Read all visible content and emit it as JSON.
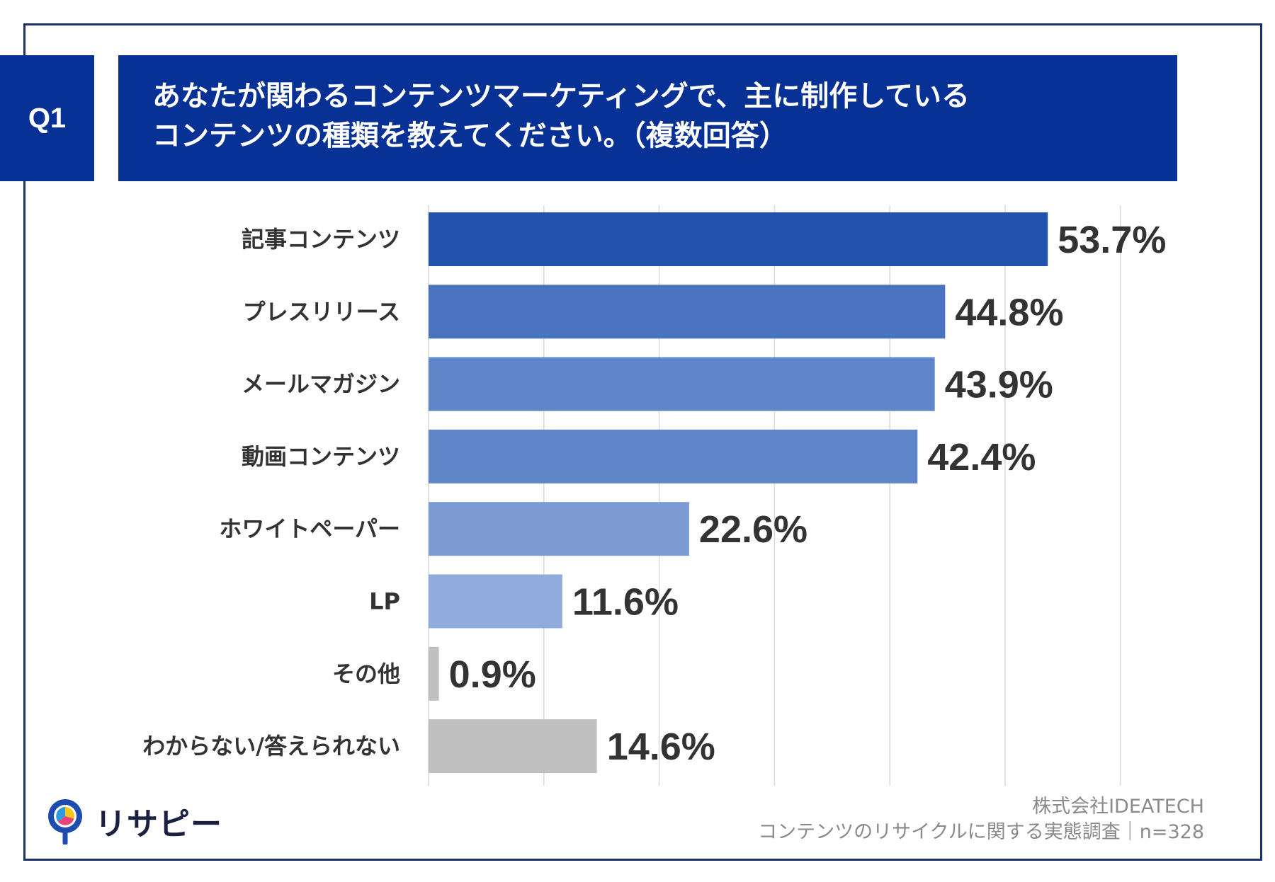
{
  "question": {
    "badge": "Q1",
    "line1": "あなたが関わるコンテンツマーケティングで、主に制作している",
    "line2": "コンテンツの種類を教えてください。（複数回答）"
  },
  "chart_data": {
    "type": "bar",
    "orientation": "horizontal",
    "categories": [
      "記事コンテンツ",
      "プレスリリース",
      "メールマガジン",
      "動画コンテンツ",
      "ホワイトペーパー",
      "LP",
      "その他",
      "わからない/答えられない"
    ],
    "values": [
      53.7,
      44.8,
      43.9,
      42.4,
      22.6,
      11.6,
      0.9,
      14.6
    ],
    "value_labels": [
      "53.7%",
      "44.8%",
      "43.9%",
      "42.4%",
      "22.6%",
      "11.6%",
      "0.9%",
      "14.6%"
    ],
    "colors": [
      "#2152ae",
      "#4a74c1",
      "#5f86c8",
      "#5f86c8",
      "#7b9bd2",
      "#91acdc",
      "#c0c0c0",
      "#c0c0c0"
    ],
    "xlim": [
      0,
      60
    ],
    "grid": true,
    "unit": "%"
  },
  "branding": {
    "logo_text": "リサピー",
    "logo_icon": "map-pin-pie-icon"
  },
  "credit": {
    "company": "株式会社IDEATECH",
    "survey": "コンテンツのリサイクルに関する実態調査｜n=328"
  }
}
